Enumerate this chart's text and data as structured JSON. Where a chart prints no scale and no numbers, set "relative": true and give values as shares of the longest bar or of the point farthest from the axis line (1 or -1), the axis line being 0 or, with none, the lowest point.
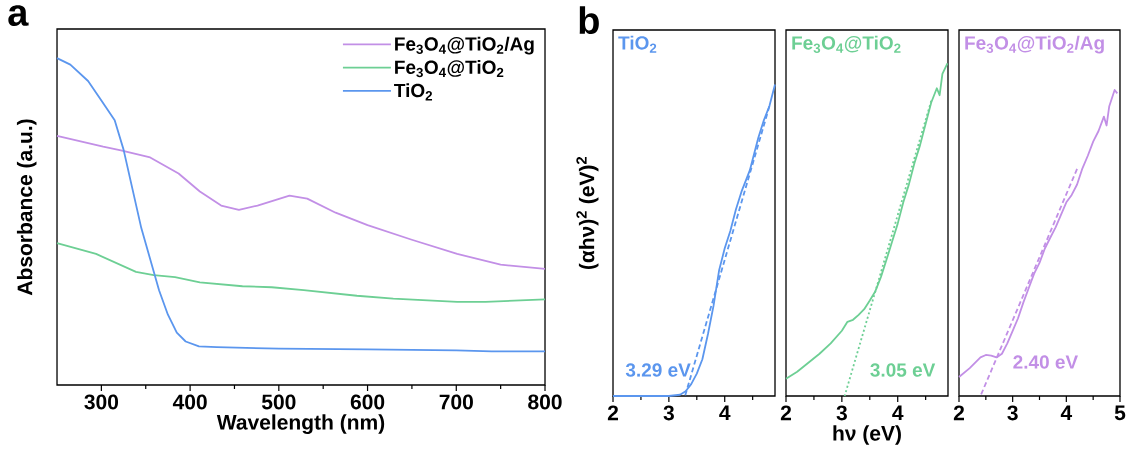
{
  "chart_data": [
    {
      "type": "line",
      "title": "a",
      "xlabel": "Wavelength (nm)",
      "ylabel": "Absorbance (a.u.)",
      "relative": true,
      "tick_labels": "x",
      "legend": "top right",
      "xlim": [
        250,
        800
      ],
      "xticks": [
        300,
        400,
        500,
        600,
        700,
        800,
        {
          "value": 350,
          "label": null
        },
        {
          "value": 450,
          "label": null
        },
        {
          "value": 550,
          "label": null
        },
        {
          "value": 650,
          "label": null
        },
        {
          "value": 750,
          "label": null
        }
      ],
      "series": [
        {
          "name": "Fe$_{3}$O$_{4}$@TiO$_{2}$/Ag",
          "color": "#c28fe6",
          "x": [
            250,
            302,
            322,
            355,
            387,
            411,
            435,
            455,
            476,
            512,
            532,
            564,
            600,
            649,
            701,
            750,
            800
          ],
          "values": [
            0.762,
            0.729,
            0.718,
            0.696,
            0.647,
            0.592,
            0.549,
            0.536,
            0.549,
            0.579,
            0.57,
            0.527,
            0.489,
            0.445,
            0.401,
            0.368,
            0.355
          ]
        },
        {
          "name": "Fe$_{3}$O$_{4}$@TiO$_{2}$",
          "color": "#6dcf94",
          "x": [
            250,
            294,
            339,
            359,
            383,
            411,
            459,
            492,
            528,
            588,
            629,
            701,
            733,
            800
          ],
          "values": [
            0.434,
            0.401,
            0.346,
            0.336,
            0.33,
            0.314,
            0.302,
            0.299,
            0.29,
            0.273,
            0.264,
            0.254,
            0.254,
            0.262
          ]
        },
        {
          "name": "TiO$_{2}$",
          "color": "#5b96ee",
          "x": [
            250,
            265,
            285,
            300,
            315,
            325,
            335,
            345,
            355,
            365,
            375,
            385,
            395,
            410,
            430,
            500,
            600,
            700,
            740,
            800
          ],
          "values": [
            1.0,
            0.98,
            0.93,
            0.87,
            0.81,
            0.72,
            0.6,
            0.48,
            0.385,
            0.29,
            0.215,
            0.16,
            0.133,
            0.118,
            0.116,
            0.111,
            0.109,
            0.106,
            0.103,
            0.103
          ]
        }
      ]
    },
    {
      "type": "line",
      "title": "b",
      "ylabel": "(αhν)$^{2}$ (eV)$^{2}$",
      "relative": true,
      "tick_labels": "x",
      "xlim": [
        2,
        4.9
      ],
      "xticks": [
        2,
        3,
        4,
        {
          "value": 2.5,
          "label": null
        },
        {
          "value": 3.5,
          "label": null
        },
        {
          "value": 4.5,
          "label": null
        }
      ],
      "series": [
        {
          "name": "TiO$_{2}$",
          "color": "#5b96ee",
          "x": [
            2.0,
            3.0,
            3.2,
            3.3,
            3.4,
            3.5,
            3.6,
            3.7,
            3.8,
            3.9,
            4.0,
            4.1,
            4.2,
            4.3,
            4.4,
            4.45,
            4.5,
            4.6,
            4.7,
            4.8,
            4.9
          ],
          "values": [
            0,
            0,
            0.004,
            0.015,
            0.038,
            0.072,
            0.118,
            0.199,
            0.29,
            0.404,
            0.474,
            0.53,
            0.599,
            0.656,
            0.702,
            0.725,
            0.759,
            0.828,
            0.885,
            0.931,
            1.0
          ]
        },
        {
          "color": "#5b96ee",
          "line_style": "dashed",
          "x": [
            4.8,
            3.29
          ],
          "values": [
            0.93,
            0
          ]
        }
      ],
      "annotations": [
        {
          "text": "3.29 eV",
          "x": 3.29,
          "y": 0
        }
      ]
    },
    {
      "type": "line",
      "xlabel": "hν (eV)",
      "relative": true,
      "tick_labels": "x",
      "xlim": [
        2,
        4.9
      ],
      "xticks": [
        2,
        3,
        4,
        {
          "value": 2.5,
          "label": null
        },
        {
          "value": 3.5,
          "label": null
        },
        {
          "value": 4.5,
          "label": null
        }
      ],
      "series": [
        {
          "name": "Fe$_{3}$O$_{4}$@TiO$_{2}$",
          "color": "#6dcf94",
          "x": [
            2.0,
            2.2,
            2.4,
            2.6,
            2.8,
            3.0,
            3.1,
            3.2,
            3.3,
            3.4,
            3.5,
            3.6,
            3.7,
            3.8,
            3.9,
            4.0,
            4.1,
            4.2,
            4.3,
            4.4,
            4.5,
            4.6,
            4.7,
            4.75,
            4.8,
            4.89
          ],
          "values": [
            0.052,
            0.073,
            0.1,
            0.127,
            0.158,
            0.196,
            0.223,
            0.229,
            0.244,
            0.261,
            0.287,
            0.315,
            0.358,
            0.41,
            0.464,
            0.518,
            0.582,
            0.636,
            0.7,
            0.754,
            0.818,
            0.882,
            0.925,
            0.904,
            0.968,
            1.0
          ]
        },
        {
          "color": "#6dcf94",
          "line_style": "dotted",
          "x": [
            4.6,
            3.05
          ],
          "values": [
            0.887,
            0
          ]
        }
      ],
      "annotations": [
        {
          "text": "3.05 eV",
          "x": 3.05,
          "y": 0
        }
      ]
    },
    {
      "type": "line",
      "relative": true,
      "tick_labels": "x",
      "xlim": [
        2,
        5
      ],
      "xticks": [
        2,
        3,
        4,
        5,
        {
          "value": 2.5,
          "label": null
        },
        {
          "value": 3.5,
          "label": null
        },
        {
          "value": 4.5,
          "label": null
        }
      ],
      "series": [
        {
          "name": "Fe$_{3}$O$_{4}$@TiO$_{2}$/Ag",
          "color": "#c28fe6",
          "x": [
            2.0,
            2.2,
            2.4,
            2.5,
            2.6,
            2.7,
            2.8,
            2.9,
            3.0,
            3.1,
            3.2,
            3.3,
            3.4,
            3.5,
            3.6,
            3.7,
            3.8,
            3.9,
            4.0,
            4.1,
            4.2,
            4.3,
            4.4,
            4.5,
            4.6,
            4.7,
            4.75,
            4.8,
            4.9,
            4.95
          ],
          "values": [
            0.062,
            0.091,
            0.126,
            0.134,
            0.132,
            0.126,
            0.138,
            0.172,
            0.213,
            0.254,
            0.306,
            0.353,
            0.4,
            0.435,
            0.482,
            0.517,
            0.551,
            0.592,
            0.633,
            0.657,
            0.691,
            0.744,
            0.785,
            0.831,
            0.866,
            0.913,
            0.884,
            0.947,
            1.0,
            0.989
          ]
        },
        {
          "color": "#c28fe6",
          "line_style": "dashed",
          "x": [
            4.2,
            2.4
          ],
          "values": [
            0.742,
            0
          ]
        }
      ],
      "annotations": [
        {
          "text": "2.40 eV",
          "x": 2.4,
          "y": 0
        }
      ]
    }
  ]
}
